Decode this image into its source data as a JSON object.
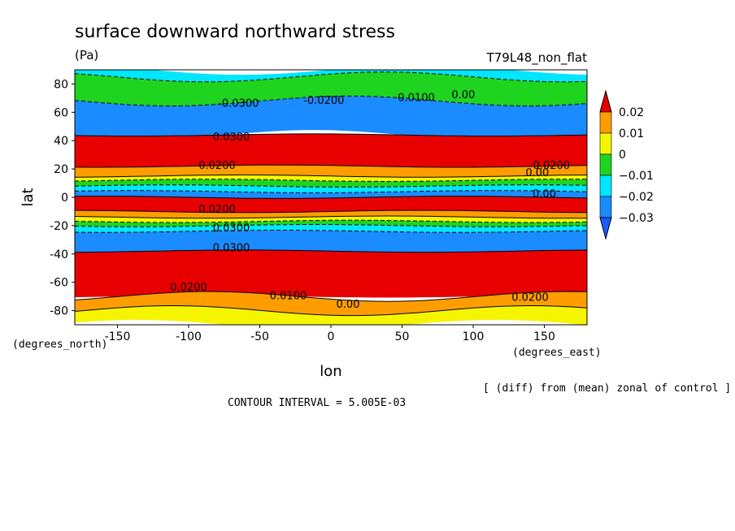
{
  "chart_data": {
    "type": "heatmap",
    "title": "surface downward northward stress",
    "units": "(Pa)",
    "experiment": "T79L48_non_flat",
    "xlabel": "lon",
    "ylabel": "lat",
    "x_units": "(degrees_east)",
    "y_units": "(degrees_north)",
    "xlim": [
      -180,
      180
    ],
    "ylim": [
      -90,
      90
    ],
    "x_ticks": [
      -150,
      -100,
      -50,
      0,
      50,
      100,
      150
    ],
    "y_ticks": [
      80,
      60,
      40,
      20,
      0,
      -20,
      -40,
      -60,
      -80
    ],
    "note": "[ (diff) from (mean) zonal of control ]",
    "contour_interval": "CONTOUR INTERVAL = 5.005E-03",
    "colorbar": {
      "labels": [
        "0.02",
        "0.01",
        "0",
        "−0.01",
        "−0.02",
        "−0.03"
      ],
      "colors": [
        "#e80000",
        "#ff9d00",
        "#f5f500",
        "#1fd41f",
        "#00e6ff",
        "#1a8cff",
        "#1a5cff"
      ]
    },
    "bands": [
      {
        "lat": [
          90,
          85
        ],
        "color": "#00e6ff"
      },
      {
        "lat": [
          85,
          68
        ],
        "color": "#1fd41f"
      },
      {
        "lat": [
          68,
          44
        ],
        "color": "#1a8cff"
      },
      {
        "lat": [
          44,
          22
        ],
        "color": "#e80000"
      },
      {
        "lat": [
          22,
          15
        ],
        "color": "#ff9d00"
      },
      {
        "lat": [
          15,
          12
        ],
        "color": "#f5f500"
      },
      {
        "lat": [
          12,
          8
        ],
        "color": "#1fd41f"
      },
      {
        "lat": [
          8,
          4
        ],
        "color": "#00e6ff"
      },
      {
        "lat": [
          4,
          0
        ],
        "color": "#1a8cff"
      },
      {
        "lat": [
          0,
          -10
        ],
        "color": "#e80000"
      },
      {
        "lat": [
          -10,
          -14
        ],
        "color": "#ff9d00"
      },
      {
        "lat": [
          -14,
          -17
        ],
        "color": "#f5f500"
      },
      {
        "lat": [
          -17,
          -20
        ],
        "color": "#1fd41f"
      },
      {
        "lat": [
          -20,
          -24
        ],
        "color": "#00e6ff"
      },
      {
        "lat": [
          -24,
          -38
        ],
        "color": "#1a8cff"
      },
      {
        "lat": [
          -38,
          -70
        ],
        "color": "#e80000"
      },
      {
        "lat": [
          -70,
          -80
        ],
        "color": "#ff9d00"
      },
      {
        "lat": [
          -80,
          -90
        ],
        "color": "#f5f500"
      }
    ],
    "contour_labels": [
      {
        "text": "-0.0300",
        "lon": -65,
        "lat": 64
      },
      {
        "text": "-0.0200",
        "lon": -5,
        "lat": 66
      },
      {
        "text": "0.0100",
        "lon": 60,
        "lat": 68
      },
      {
        "text": "0.00",
        "lon": 93,
        "lat": 70
      },
      {
        "text": "0.0200",
        "lon": 155,
        "lat": 20
      },
      {
        "text": "0.00",
        "lon": 145,
        "lat": 15
      },
      {
        "text": "0.00",
        "lon": 150,
        "lat": 0
      },
      {
        "text": "0.0200",
        "lon": -80,
        "lat": 20
      },
      {
        "text": "0.0200",
        "lon": -80,
        "lat": -11
      },
      {
        "text": "0.0300",
        "lon": -70,
        "lat": -24
      },
      {
        "text": "0.0200",
        "lon": -100,
        "lat": -66
      },
      {
        "text": "0.0100",
        "lon": -30,
        "lat": -72
      },
      {
        "text": "0.00",
        "lon": 12,
        "lat": -78
      },
      {
        "text": "0.0200",
        "lon": 140,
        "lat": -73
      },
      {
        "text": "0.0300",
        "lon": -70,
        "lat": 40
      },
      {
        "text": "0.0300",
        "lon": -70,
        "lat": -38
      }
    ]
  }
}
